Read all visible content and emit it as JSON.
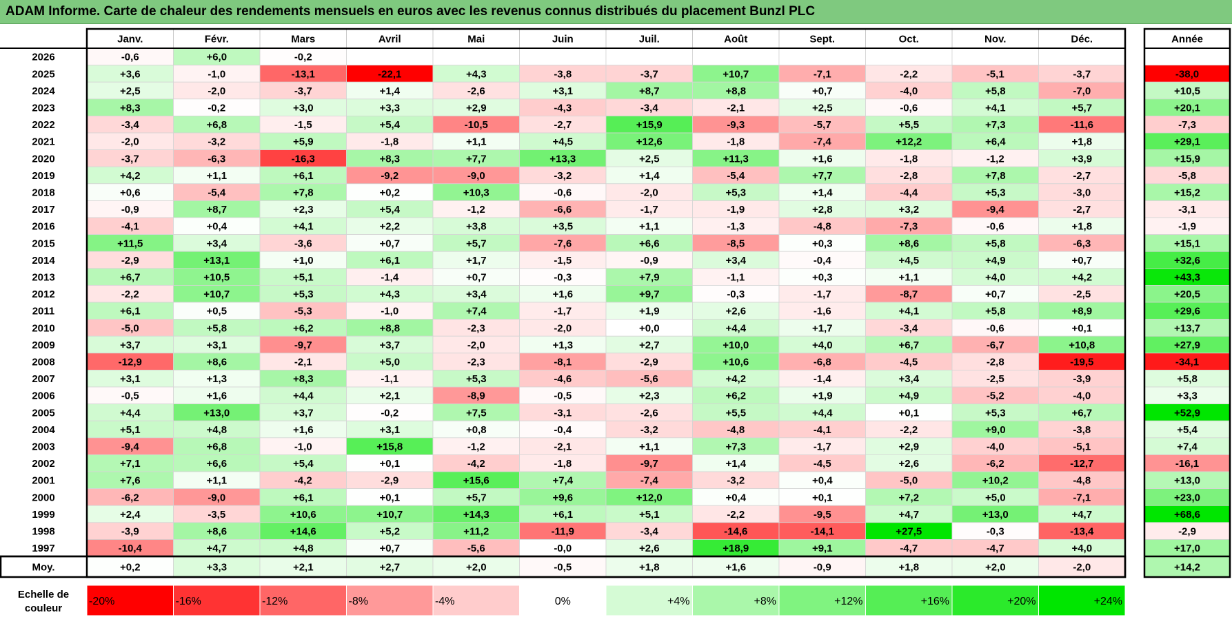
{
  "title": "ADAM Informe. Carte de chaleur des rendements mensuels en euros avec les revenus connus distribués du placement Bunzl PLC",
  "colors": {
    "negative_max": "#ff0000",
    "neutral": "#ffffff",
    "positive_max": "#00e600",
    "title_bg": "#7fc97f",
    "border": "#000000"
  },
  "chart_data": {
    "type": "heatmap",
    "title": "ADAM Informe. Carte de chaleur des rendements mensuels en euros avec les revenus connus distribués du placement Bunzl PLC",
    "columns": [
      "Janv.",
      "Févr.",
      "Mars",
      "Avril",
      "Mai",
      "Juin",
      "Juil.",
      "Août",
      "Sept.",
      "Oct.",
      "Nov.",
      "Déc."
    ],
    "year_column_label": "Année",
    "rows": [
      {
        "year": "2026",
        "values": [
          "-0,6",
          "+6,0",
          "-0,2",
          "",
          "",
          "",
          "",
          "",
          "",
          "",
          "",
          ""
        ],
        "annual": ""
      },
      {
        "year": "2025",
        "values": [
          "+3,6",
          "-1,0",
          "-13,1",
          "-22,1",
          "+4,3",
          "-3,8",
          "-3,7",
          "+10,7",
          "-7,1",
          "-2,2",
          "-5,1",
          "-3,7"
        ],
        "annual": "-38,0"
      },
      {
        "year": "2024",
        "values": [
          "+2,5",
          "-2,0",
          "-3,7",
          "+1,4",
          "-2,6",
          "+3,1",
          "+8,7",
          "+8,8",
          "+0,7",
          "-4,0",
          "+5,8",
          "-7,0"
        ],
        "annual": "+10,5"
      },
      {
        "year": "2023",
        "values": [
          "+8,3",
          "-0,2",
          "+3,0",
          "+3,3",
          "+2,9",
          "-4,3",
          "-3,4",
          "-2,1",
          "+2,5",
          "-0,6",
          "+4,1",
          "+5,7"
        ],
        "annual": "+20,1"
      },
      {
        "year": "2022",
        "values": [
          "-3,4",
          "+6,8",
          "-1,5",
          "+5,4",
          "-10,5",
          "-2,7",
          "+15,9",
          "-9,3",
          "-5,7",
          "+5,5",
          "+7,3",
          "-11,6"
        ],
        "annual": "-7,3"
      },
      {
        "year": "2021",
        "values": [
          "-2,0",
          "-3,2",
          "+5,9",
          "-1,8",
          "+1,1",
          "+4,5",
          "+12,6",
          "-1,8",
          "-7,4",
          "+12,2",
          "+6,4",
          "+1,8"
        ],
        "annual": "+29,1"
      },
      {
        "year": "2020",
        "values": [
          "-3,7",
          "-6,3",
          "-16,3",
          "+8,3",
          "+7,7",
          "+13,3",
          "+2,5",
          "+11,3",
          "+1,6",
          "-1,8",
          "-1,2",
          "+3,9"
        ],
        "annual": "+15,9"
      },
      {
        "year": "2019",
        "values": [
          "+4,2",
          "+1,1",
          "+6,1",
          "-9,2",
          "-9,0",
          "-3,2",
          "+1,4",
          "-5,4",
          "+7,7",
          "-2,8",
          "+7,8",
          "-2,7"
        ],
        "annual": "-5,8"
      },
      {
        "year": "2018",
        "values": [
          "+0,6",
          "-5,4",
          "+7,8",
          "+0,2",
          "+10,3",
          "-0,6",
          "-2,0",
          "+5,3",
          "+1,4",
          "-4,4",
          "+5,3",
          "-3,0"
        ],
        "annual": "+15,2"
      },
      {
        "year": "2017",
        "values": [
          "-0,9",
          "+8,7",
          "+2,3",
          "+5,4",
          "-1,2",
          "-6,6",
          "-1,7",
          "-1,9",
          "+2,8",
          "+3,2",
          "-9,4",
          "-2,7"
        ],
        "annual": "-3,1"
      },
      {
        "year": "2016",
        "values": [
          "-4,1",
          "+0,4",
          "+4,1",
          "+2,2",
          "+3,8",
          "+3,5",
          "+1,1",
          "-1,3",
          "-4,8",
          "-7,3",
          "-0,6",
          "+1,8"
        ],
        "annual": "-1,9"
      },
      {
        "year": "2015",
        "values": [
          "+11,5",
          "+3,4",
          "-3,6",
          "+0,7",
          "+5,7",
          "-7,6",
          "+6,6",
          "-8,5",
          "+0,3",
          "+8,6",
          "+5,8",
          "-6,3"
        ],
        "annual": "+15,1"
      },
      {
        "year": "2014",
        "values": [
          "-2,9",
          "+13,1",
          "+1,0",
          "+6,1",
          "+1,7",
          "-1,5",
          "-0,9",
          "+3,4",
          "-0,4",
          "+4,5",
          "+4,9",
          "+0,7"
        ],
        "annual": "+32,6"
      },
      {
        "year": "2013",
        "values": [
          "+6,7",
          "+10,5",
          "+5,1",
          "-1,4",
          "+0,7",
          "-0,3",
          "+7,9",
          "-1,1",
          "+0,3",
          "+1,1",
          "+4,0",
          "+4,2"
        ],
        "annual": "+43,3"
      },
      {
        "year": "2012",
        "values": [
          "-2,2",
          "+10,7",
          "+5,3",
          "+4,3",
          "+3,4",
          "+1,6",
          "+9,7",
          "-0,3",
          "-1,7",
          "-8,7",
          "+0,7",
          "-2,5"
        ],
        "annual": "+20,5"
      },
      {
        "year": "2011",
        "values": [
          "+6,1",
          "+0,5",
          "-5,3",
          "-1,0",
          "+7,4",
          "-1,7",
          "+1,9",
          "+2,6",
          "-1,6",
          "+4,1",
          "+5,8",
          "+8,9"
        ],
        "annual": "+29,6"
      },
      {
        "year": "2010",
        "values": [
          "-5,0",
          "+5,8",
          "+6,2",
          "+8,8",
          "-2,3",
          "-2,0",
          "+0,0",
          "+4,4",
          "+1,7",
          "-3,4",
          "-0,6",
          "+0,1"
        ],
        "annual": "+13,7"
      },
      {
        "year": "2009",
        "values": [
          "+3,7",
          "+3,1",
          "-9,7",
          "+3,7",
          "-2,0",
          "+1,3",
          "+2,7",
          "+10,0",
          "+4,0",
          "+6,7",
          "-6,7",
          "+10,8"
        ],
        "annual": "+27,9"
      },
      {
        "year": "2008",
        "values": [
          "-12,9",
          "+8,6",
          "-2,1",
          "+5,0",
          "-2,3",
          "-8,1",
          "-2,9",
          "+10,6",
          "-6,8",
          "-4,5",
          "-2,8",
          "-19,5"
        ],
        "annual": "-34,1"
      },
      {
        "year": "2007",
        "values": [
          "+3,1",
          "+1,3",
          "+8,3",
          "-1,1",
          "+5,3",
          "-4,6",
          "-5,6",
          "+4,2",
          "-1,4",
          "+3,4",
          "-2,5",
          "-3,9"
        ],
        "annual": "+5,8"
      },
      {
        "year": "2006",
        "values": [
          "-0,5",
          "+1,6",
          "+4,4",
          "+2,1",
          "-8,9",
          "-0,5",
          "+2,3",
          "+6,2",
          "+1,9",
          "+4,9",
          "-5,2",
          "-4,0"
        ],
        "annual": "+3,3"
      },
      {
        "year": "2005",
        "values": [
          "+4,4",
          "+13,0",
          "+3,7",
          "-0,2",
          "+7,5",
          "-3,1",
          "-2,6",
          "+5,5",
          "+4,4",
          "+0,1",
          "+5,3",
          "+6,7"
        ],
        "annual": "+52,9"
      },
      {
        "year": "2004",
        "values": [
          "+5,1",
          "+4,8",
          "+1,6",
          "+3,1",
          "+0,8",
          "-0,4",
          "-3,2",
          "-4,8",
          "-4,1",
          "-2,2",
          "+9,0",
          "-3,8"
        ],
        "annual": "+5,4"
      },
      {
        "year": "2003",
        "values": [
          "-9,4",
          "+6,8",
          "-1,0",
          "+15,8",
          "-1,2",
          "-2,1",
          "+1,1",
          "+7,3",
          "-1,7",
          "+2,9",
          "-4,0",
          "-5,1"
        ],
        "annual": "+7,4"
      },
      {
        "year": "2002",
        "values": [
          "+7,1",
          "+6,6",
          "+5,4",
          "+0,1",
          "-4,2",
          "-1,8",
          "-9,7",
          "+1,4",
          "-4,5",
          "+2,6",
          "-6,2",
          "-12,7"
        ],
        "annual": "-16,1"
      },
      {
        "year": "2001",
        "values": [
          "+7,6",
          "+1,1",
          "-4,2",
          "-2,9",
          "+15,6",
          "+7,4",
          "-7,4",
          "-3,2",
          "+0,4",
          "-5,0",
          "+10,2",
          "-4,8"
        ],
        "annual": "+13,0"
      },
      {
        "year": "2000",
        "values": [
          "-6,2",
          "-9,0",
          "+6,1",
          "+0,1",
          "+5,7",
          "+9,6",
          "+12,0",
          "+0,4",
          "+0,1",
          "+7,2",
          "+5,0",
          "-7,1"
        ],
        "annual": "+23,0"
      },
      {
        "year": "1999",
        "values": [
          "+2,4",
          "-3,5",
          "+10,6",
          "+10,7",
          "+14,3",
          "+6,1",
          "+5,1",
          "-2,2",
          "-9,5",
          "+4,7",
          "+13,0",
          "+4,7"
        ],
        "annual": "+68,6"
      },
      {
        "year": "1998",
        "values": [
          "-3,9",
          "+8,6",
          "+14,6",
          "+5,2",
          "+11,2",
          "-11,9",
          "-3,4",
          "-14,6",
          "-14,1",
          "+27,5",
          "-0,3",
          "-13,4"
        ],
        "annual": "-2,9"
      },
      {
        "year": "1997",
        "values": [
          "-10,4",
          "+4,7",
          "+4,8",
          "+0,7",
          "-5,6",
          "-0,0",
          "+2,6",
          "+18,9",
          "+9,1",
          "-4,7",
          "-4,7",
          "+4,0"
        ],
        "annual": "+17,0"
      }
    ],
    "average": {
      "label": "Moy.",
      "values": [
        "+0,2",
        "+3,3",
        "+2,1",
        "+2,7",
        "+2,0",
        "-0,5",
        "+1,8",
        "+1,6",
        "-0,9",
        "+1,8",
        "+2,0",
        "-2,0"
      ],
      "annual": "+14,2"
    },
    "scale": {
      "label_line1": "Echelle de",
      "label_line2": "couleur",
      "stops": [
        {
          "label": "-20%",
          "value": -20
        },
        {
          "label": "-16%",
          "value": -16
        },
        {
          "label": "-12%",
          "value": -12
        },
        {
          "label": "-8%",
          "value": -8
        },
        {
          "label": "-4%",
          "value": -4
        },
        {
          "label": "0%",
          "value": 0
        },
        {
          "label": "+4%",
          "value": 4
        },
        {
          "label": "+8%",
          "value": 8
        },
        {
          "label": "+12%",
          "value": 12
        },
        {
          "label": "+16%",
          "value": 16
        },
        {
          "label": "+20%",
          "value": 20
        },
        {
          "label": "+24%",
          "value": 24
        }
      ]
    }
  }
}
